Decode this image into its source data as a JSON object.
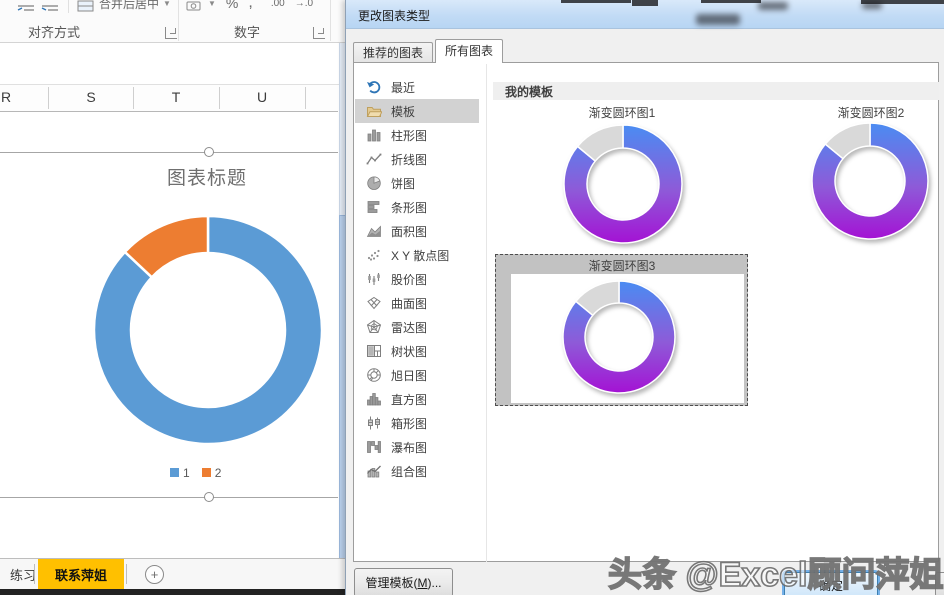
{
  "ribbon": {
    "merge_center_label": "合并后居中",
    "group_alignment": "对齐方式",
    "group_number": "数字",
    "percent": "%",
    "comma": ",",
    "decimal_increase": ".00",
    "decimal_decrease": "→.0"
  },
  "sheet": {
    "column_headers": [
      "R",
      "S",
      "T",
      "U"
    ],
    "tabs": [
      {
        "label": "练习",
        "active": false
      },
      {
        "label": "联系萍姐",
        "active": true
      }
    ]
  },
  "dialog": {
    "title": "更改图表类型",
    "tabs": [
      {
        "label": "推荐的图表",
        "active": false
      },
      {
        "label": "所有图表",
        "active": true
      }
    ],
    "chart_types": [
      {
        "label": "最近"
      },
      {
        "label": "模板",
        "selected": true
      },
      {
        "label": "柱形图"
      },
      {
        "label": "折线图"
      },
      {
        "label": "饼图"
      },
      {
        "label": "条形图"
      },
      {
        "label": "面积图"
      },
      {
        "label": "X Y 散点图"
      },
      {
        "label": "股价图"
      },
      {
        "label": "曲面图"
      },
      {
        "label": "雷达图"
      },
      {
        "label": "树状图"
      },
      {
        "label": "旭日图"
      },
      {
        "label": "直方图"
      },
      {
        "label": "箱形图"
      },
      {
        "label": "瀑布图"
      },
      {
        "label": "组合图"
      }
    ],
    "templates_header": "我的模板",
    "manage_templates": {
      "pre": "管理模板(",
      "mnemonic": "M",
      "post": ")..."
    },
    "ok_label": "确定"
  },
  "watermark": "头条 @Excel顾问萍姐",
  "colors": {
    "series1_blue": "#5b9bd5",
    "series2_orange": "#ed7d31",
    "template_gray_slice": "#d9d9d9",
    "gradient_top_blue": "#4a8cf2",
    "gradient_mid_purple": "#8e5ad8",
    "gradient_bottom_purple": "#a412d4",
    "active_sheet_tab": "#ffc000",
    "dialog_titlebar": "#c2dbf5",
    "selected_row": "#d2d2d2"
  },
  "chart_data": [
    {
      "type": "donut",
      "title": "图表标题",
      "legend": [
        "1",
        "2"
      ],
      "legend_position": "bottom",
      "values": [
        87,
        13
      ],
      "colors": [
        "#5b9bd5",
        "#ed7d31"
      ]
    },
    {
      "type": "donut",
      "title": "渐变圆环图1",
      "values": [
        86,
        14
      ],
      "colors": [
        "gradient-blue-purple",
        "#d9d9d9"
      ]
    },
    {
      "type": "donut",
      "title": "渐变圆环图2",
      "values": [
        86,
        14
      ],
      "colors": [
        "gradient-blue-purple",
        "#d9d9d9"
      ]
    },
    {
      "type": "donut",
      "title": "渐变圆环图3",
      "selected": true,
      "values": [
        86,
        14
      ],
      "colors": [
        "gradient-blue-purple",
        "#d9d9d9"
      ]
    }
  ]
}
